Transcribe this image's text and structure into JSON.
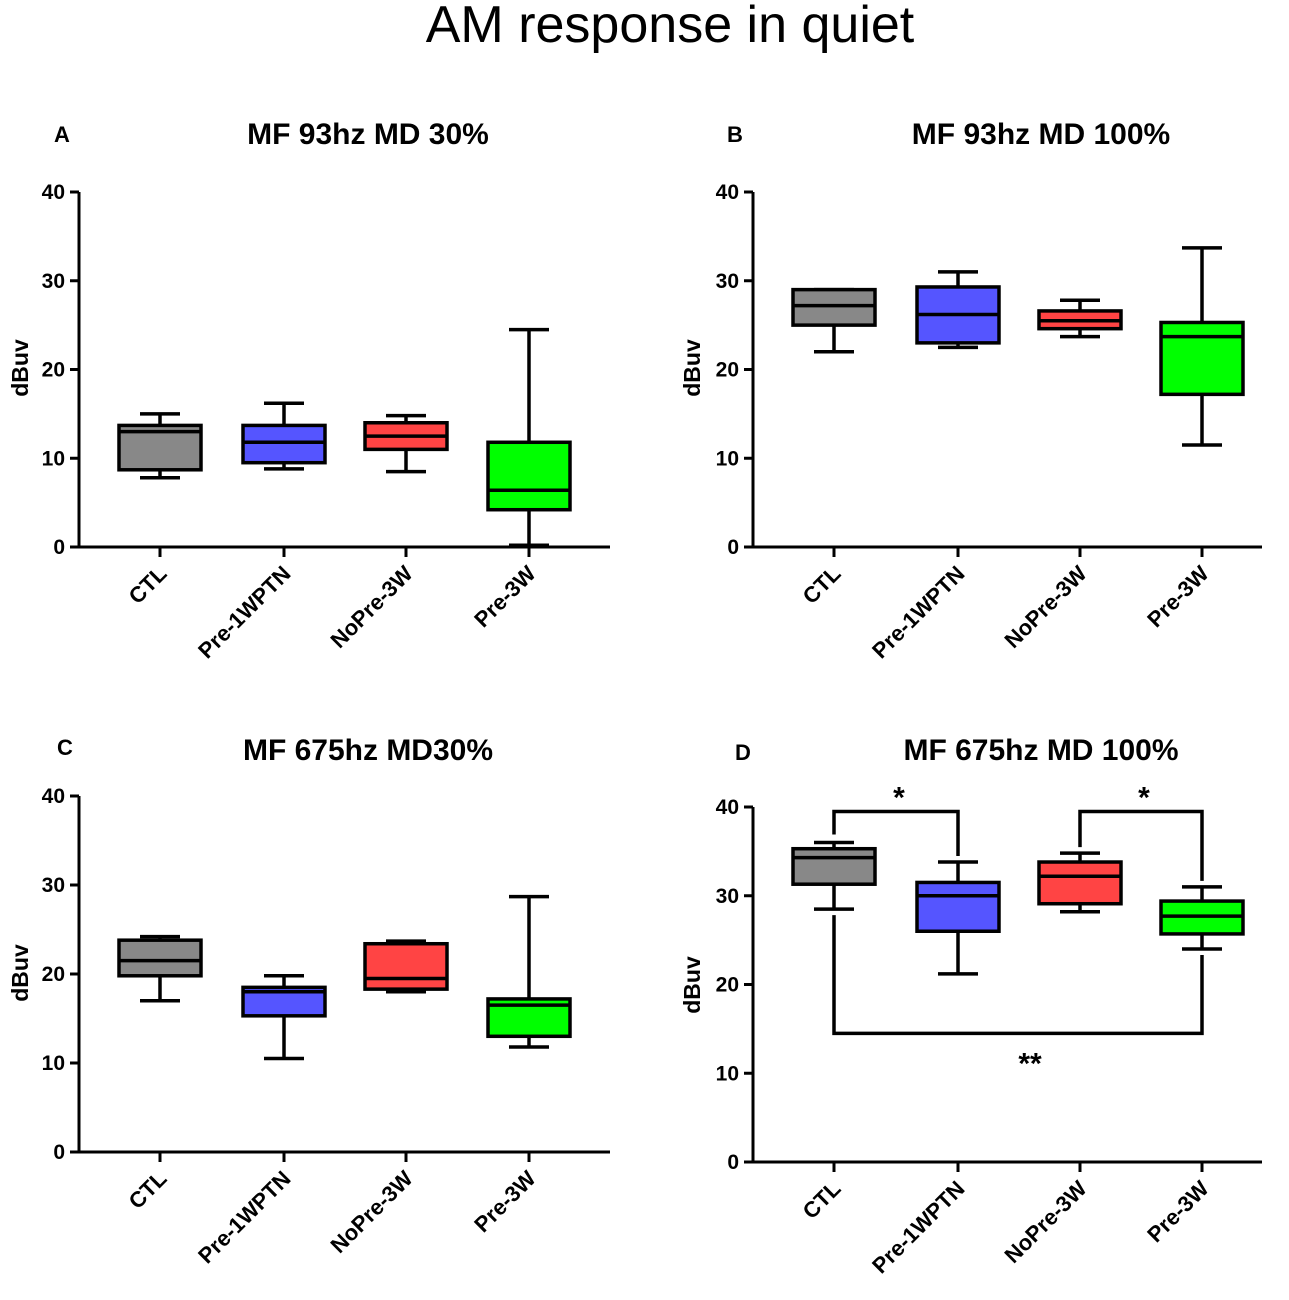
{
  "main_title": "AM response in quiet",
  "chart_data": [
    {
      "type": "boxplot",
      "panel": "A",
      "title": "MF 93hz  MD 30%",
      "ylabel": "dBuv",
      "xlabel": "",
      "ylim": [
        0,
        40
      ],
      "yticks": [
        0,
        10,
        20,
        30,
        40
      ],
      "categories": [
        "CTL",
        "Pre-1WPTN",
        "NoPre-3W",
        "Pre-3W"
      ],
      "colors": [
        "#888888",
        "#5555ff",
        "#ff4444",
        "#00ff00"
      ],
      "boxes": [
        {
          "min": 7.8,
          "q1": 8.7,
          "median": 13.0,
          "q3": 13.7,
          "max": 15.0
        },
        {
          "min": 8.8,
          "q1": 9.5,
          "median": 11.8,
          "q3": 13.7,
          "max": 16.2
        },
        {
          "min": 8.5,
          "q1": 11.0,
          "median": 12.5,
          "q3": 14.0,
          "max": 14.8
        },
        {
          "min": 0.2,
          "q1": 4.2,
          "median": 6.4,
          "q3": 11.8,
          "max": 24.5
        }
      ],
      "significance": []
    },
    {
      "type": "boxplot",
      "panel": "B",
      "title": "MF 93hz  MD 100%",
      "ylabel": "dBuv",
      "xlabel": "",
      "ylim": [
        0,
        40
      ],
      "yticks": [
        0,
        10,
        20,
        30,
        40
      ],
      "categories": [
        "CTL",
        "Pre-1WPTN",
        "NoPre-3W",
        "Pre-3W"
      ],
      "colors": [
        "#888888",
        "#5555ff",
        "#ff4444",
        "#00ff00"
      ],
      "boxes": [
        {
          "min": 22.0,
          "q1": 25.0,
          "median": 27.2,
          "q3": 29.0,
          "max": 29.0
        },
        {
          "min": 22.5,
          "q1": 23.0,
          "median": 26.2,
          "q3": 29.3,
          "max": 31.0
        },
        {
          "min": 23.7,
          "q1": 24.6,
          "median": 25.5,
          "q3": 26.6,
          "max": 27.8
        },
        {
          "min": 11.5,
          "q1": 17.2,
          "median": 23.7,
          "q3": 25.3,
          "max": 33.7
        }
      ],
      "significance": []
    },
    {
      "type": "boxplot",
      "panel": "C",
      "title": "MF 675hz MD30%",
      "ylabel": "dBuv",
      "xlabel": "",
      "ylim": [
        0,
        40
      ],
      "yticks": [
        0,
        10,
        20,
        30,
        40
      ],
      "categories": [
        "CTL",
        "Pre-1WPTN",
        "NoPre-3W",
        "Pre-3W"
      ],
      "colors": [
        "#888888",
        "#5555ff",
        "#ff4444",
        "#00ff00"
      ],
      "boxes": [
        {
          "min": 17.0,
          "q1": 19.8,
          "median": 21.5,
          "q3": 23.8,
          "max": 24.2
        },
        {
          "min": 10.5,
          "q1": 15.3,
          "median": 18.0,
          "q3": 18.5,
          "max": 19.8
        },
        {
          "min": 18.0,
          "q1": 18.3,
          "median": 19.5,
          "q3": 23.4,
          "max": 23.7
        },
        {
          "min": 11.8,
          "q1": 13.0,
          "median": 16.5,
          "q3": 17.2,
          "max": 28.7
        }
      ],
      "significance": []
    },
    {
      "type": "boxplot",
      "panel": "D",
      "title": "MF 675hz  MD 100%",
      "ylabel": "dBuv",
      "xlabel": "",
      "ylim": [
        0,
        40
      ],
      "yticks": [
        0,
        10,
        20,
        30,
        40
      ],
      "categories": [
        "CTL",
        "Pre-1WPTN",
        "NoPre-3W",
        "Pre-3W"
      ],
      "colors": [
        "#888888",
        "#5555ff",
        "#ff4444",
        "#00ff00"
      ],
      "boxes": [
        {
          "min": 28.5,
          "q1": 31.3,
          "median": 34.3,
          "q3": 35.3,
          "max": 36.0
        },
        {
          "min": 21.2,
          "q1": 26.0,
          "median": 30.0,
          "q3": 31.5,
          "max": 33.8
        },
        {
          "min": 28.2,
          "q1": 29.1,
          "median": 32.2,
          "q3": 33.8,
          "max": 34.8
        },
        {
          "min": 24.0,
          "q1": 25.7,
          "median": 27.7,
          "q3": 29.4,
          "max": 31.0
        }
      ],
      "significance": [
        {
          "from": 0,
          "to": 1,
          "label": "*",
          "level": 39.5,
          "side": "above"
        },
        {
          "from": 2,
          "to": 3,
          "label": "*",
          "level": 39.5,
          "side": "above"
        },
        {
          "from": 0,
          "to": 3,
          "label": "**",
          "level": 14.5,
          "side": "below"
        }
      ]
    }
  ]
}
